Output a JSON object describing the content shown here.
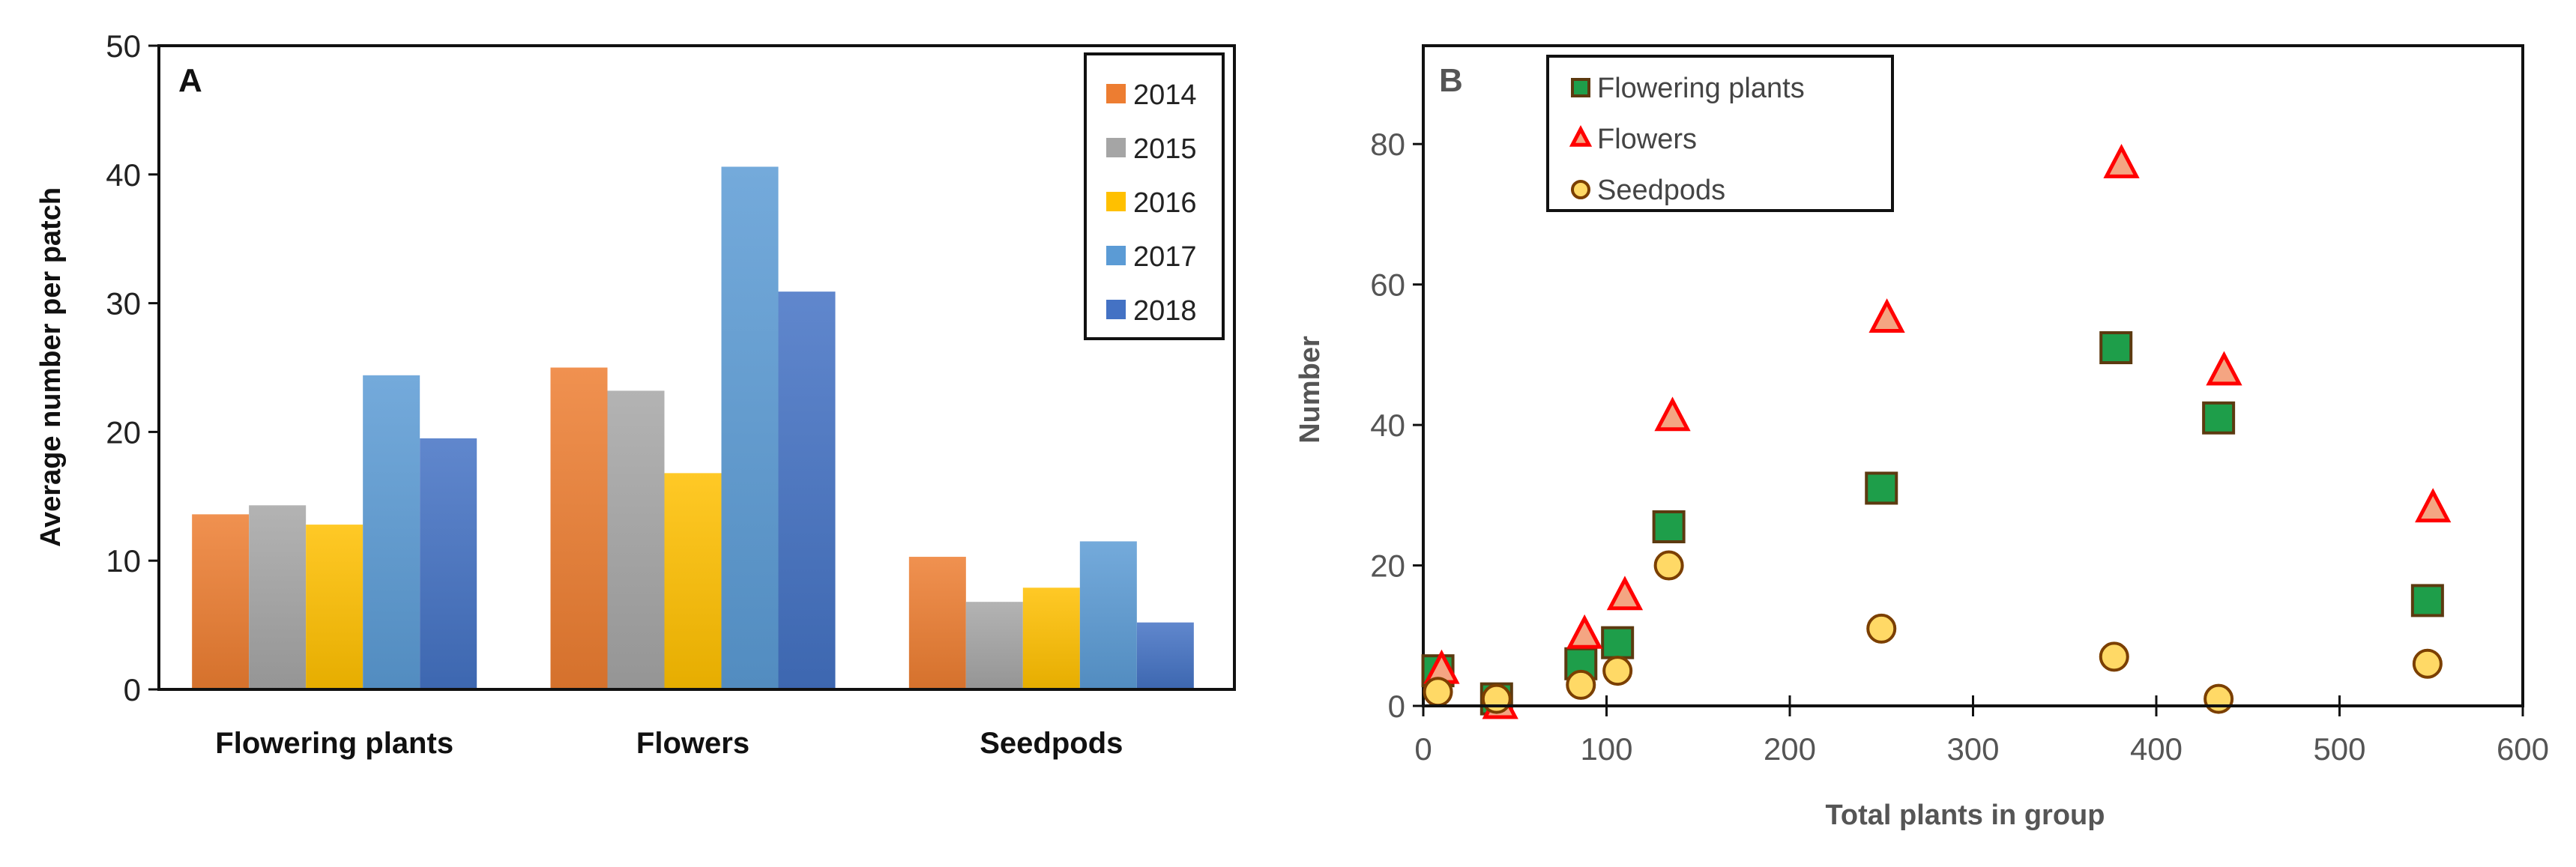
{
  "chart_data": [
    {
      "type": "bar",
      "panel_label": "A",
      "title": "",
      "xlabel": "",
      "ylabel": "Average number per patch",
      "ylim": [
        0,
        50
      ],
      "yticks": [
        0,
        10,
        20,
        30,
        40,
        50
      ],
      "categories": [
        "Flowering plants",
        "Flowers",
        "Seedpods"
      ],
      "legend_position": "top-right",
      "series": [
        {
          "name": "2014",
          "color": "#ED7D31",
          "values": [
            13.6,
            25.0,
            10.3
          ]
        },
        {
          "name": "2015",
          "color": "#A5A5A5",
          "values": [
            14.3,
            23.2,
            6.8
          ]
        },
        {
          "name": "2016",
          "color": "#FFC000",
          "values": [
            12.8,
            16.8,
            7.9
          ]
        },
        {
          "name": "2017",
          "color": "#5B9BD5",
          "values": [
            24.4,
            40.6,
            11.5
          ]
        },
        {
          "name": "2018",
          "color": "#4472C4",
          "values": [
            19.5,
            30.9,
            5.2
          ]
        }
      ]
    },
    {
      "type": "scatter",
      "panel_label": "B",
      "title": "",
      "xlabel": "Total plants in group",
      "ylabel": "Number",
      "xlim": [
        0,
        600
      ],
      "ylim": [
        0,
        94
      ],
      "xticks": [
        0,
        100,
        200,
        300,
        400,
        500,
        600
      ],
      "yticks": [
        0,
        20,
        40,
        60,
        80
      ],
      "legend_position": "top-left",
      "series": [
        {
          "name": "Flowering plants",
          "marker": "square",
          "fill": "#1E9E4A",
          "stroke": "#5C3A10",
          "x": [
            8,
            40,
            86,
            106,
            134,
            250,
            378,
            434,
            548
          ],
          "y": [
            5,
            1,
            6,
            9,
            25.5,
            31,
            51,
            41,
            15
          ]
        },
        {
          "name": "Flowers",
          "marker": "triangle",
          "fill": "#F4A582",
          "stroke": "#FF0000",
          "x": [
            10,
            42,
            88,
            110,
            136,
            253,
            381,
            437,
            551
          ],
          "y": [
            5,
            0,
            10,
            15.5,
            41,
            55,
            77,
            47.5,
            28
          ]
        },
        {
          "name": "Seedpods",
          "marker": "circle",
          "fill": "#FFD966",
          "stroke": "#7B3F00",
          "x": [
            8,
            40,
            86,
            106,
            134,
            250,
            377,
            434,
            548
          ],
          "y": [
            2,
            1,
            3,
            5,
            20,
            11,
            7,
            1,
            6
          ]
        }
      ]
    }
  ]
}
